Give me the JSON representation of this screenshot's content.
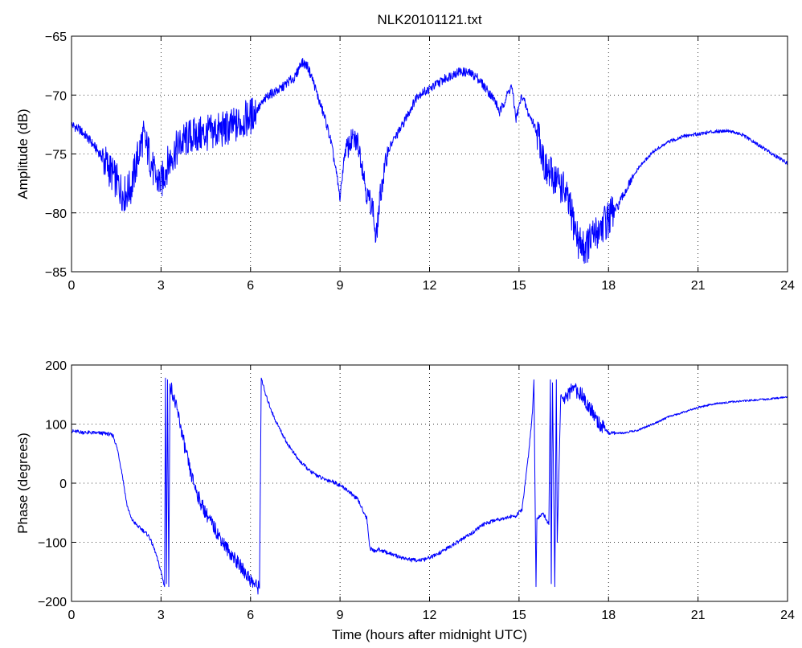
{
  "chart_data": [
    {
      "type": "line",
      "title": "NLK20101121.txt",
      "xlabel": "",
      "ylabel": "Amplitude (dB)",
      "xlim": [
        0,
        24
      ],
      "ylim": [
        -85,
        -65
      ],
      "xticks": [
        0,
        3,
        6,
        9,
        12,
        15,
        18,
        21,
        24
      ],
      "yticks": [
        -85,
        -80,
        -75,
        -70,
        -65
      ],
      "grid": true,
      "line_color": "#0000ff",
      "series": [
        {
          "name": "",
          "x": [
            0,
            0.3,
            0.6,
            0.9,
            1.2,
            1.5,
            1.75,
            2.0,
            2.2,
            2.4,
            2.6,
            2.8,
            3.0,
            3.2,
            3.4,
            3.7,
            4.0,
            4.5,
            5.0,
            5.5,
            6.0,
            6.3,
            6.6,
            7.0,
            7.3,
            7.5,
            7.7,
            7.9,
            8.1,
            8.3,
            8.5,
            8.7,
            8.9,
            9.0,
            9.15,
            9.4,
            9.6,
            9.75,
            9.9,
            10.1,
            10.2,
            10.35,
            10.6,
            10.8,
            11.0,
            11.3,
            11.6,
            12.0,
            12.4,
            12.8,
            13.0,
            13.3,
            13.6,
            14.0,
            14.2,
            14.35,
            14.6,
            14.75,
            14.9,
            15.1,
            15.3,
            15.5,
            15.7,
            15.9,
            16.2,
            16.5,
            16.8,
            17.0,
            17.2,
            17.5,
            17.8,
            18.0,
            18.3,
            18.6,
            19.0,
            19.5,
            20.0,
            20.5,
            21.0,
            21.5,
            22.0,
            22.5,
            23.0,
            23.5,
            24.0
          ],
          "y": [
            -72.5,
            -73.0,
            -73.8,
            -74.8,
            -76.0,
            -77.3,
            -78.5,
            -77.8,
            -75.5,
            -73.5,
            -75.0,
            -77.0,
            -77.5,
            -76.0,
            -75.0,
            -74.0,
            -73.5,
            -73.3,
            -73.0,
            -72.6,
            -71.8,
            -71.0,
            -70.0,
            -69.5,
            -68.8,
            -68.5,
            -67.2,
            -67.5,
            -68.8,
            -70.5,
            -72.0,
            -74.0,
            -77.0,
            -78.8,
            -75.0,
            -73.8,
            -74.0,
            -76.0,
            -78.5,
            -79.5,
            -82.5,
            -78.5,
            -74.8,
            -73.8,
            -73.0,
            -71.5,
            -70.0,
            -69.5,
            -68.8,
            -68.2,
            -68.0,
            -68.1,
            -68.5,
            -69.8,
            -70.5,
            -71.5,
            -70.0,
            -69.2,
            -72.0,
            -70.0,
            -71.5,
            -72.5,
            -73.8,
            -76.5,
            -77.0,
            -78.0,
            -80.5,
            -82.5,
            -83.0,
            -82.0,
            -81.0,
            -80.5,
            -79.5,
            -78.0,
            -76.2,
            -74.8,
            -74.0,
            -73.5,
            -73.3,
            -73.1,
            -73.0,
            -73.4,
            -74.2,
            -75.0,
            -75.8
          ]
        }
      ]
    },
    {
      "type": "line",
      "title": "",
      "xlabel": "Time (hours after midnight UTC)",
      "ylabel": "Phase (degrees)",
      "xlim": [
        0,
        24
      ],
      "ylim": [
        -200,
        200
      ],
      "xticks": [
        0,
        3,
        6,
        9,
        12,
        15,
        18,
        21,
        24
      ],
      "yticks": [
        -200,
        -100,
        0,
        100,
        200
      ],
      "grid": true,
      "line_color": "#0000ff",
      "series": [
        {
          "name": "",
          "x": [
            0,
            0.4,
            0.8,
            1.2,
            1.4,
            1.55,
            1.7,
            1.85,
            2.0,
            2.2,
            2.4,
            2.6,
            2.8,
            3.0,
            3.12,
            3.15,
            3.18,
            3.22,
            3.26,
            3.3,
            3.4,
            3.6,
            3.8,
            4.0,
            4.3,
            4.6,
            4.9,
            5.2,
            5.5,
            5.8,
            6.1,
            6.3,
            6.36,
            6.38,
            6.5,
            6.8,
            7.2,
            7.6,
            8.0,
            8.4,
            8.8,
            9.2,
            9.6,
            9.9,
            10.0,
            10.15,
            10.3,
            10.6,
            11.0,
            11.4,
            11.8,
            12.2,
            12.6,
            13.0,
            13.4,
            13.8,
            14.2,
            14.6,
            14.9,
            15.1,
            15.3,
            15.45,
            15.5,
            15.53,
            15.57,
            15.6,
            15.8,
            16.0,
            16.05,
            16.08,
            16.12,
            16.2,
            16.25,
            16.28,
            16.4,
            16.5,
            16.8,
            17.1,
            17.4,
            17.7,
            18.0,
            18.5,
            19.0,
            19.5,
            20.0,
            20.5,
            21.0,
            21.5,
            22.0,
            22.5,
            23.0,
            23.5,
            24.0
          ],
          "y": [
            88,
            86,
            85,
            84,
            80,
            55,
            15,
            -35,
            -60,
            -72,
            -80,
            -90,
            -115,
            -150,
            -175,
            178,
            -170,
            175,
            -175,
            170,
            150,
            110,
            60,
            15,
            -30,
            -60,
            -85,
            -110,
            -130,
            -150,
            -170,
            -178,
            178,
            175,
            150,
            110,
            70,
            40,
            20,
            8,
            2,
            -10,
            -28,
            -60,
            -110,
            -115,
            -112,
            -118,
            -125,
            -130,
            -130,
            -122,
            -110,
            -98,
            -85,
            -70,
            -62,
            -58,
            -55,
            -45,
            40,
            120,
            175,
            10,
            -175,
            -60,
            -50,
            -70,
            175,
            -170,
            170,
            -175,
            175,
            -100,
            150,
            140,
            160,
            150,
            125,
            100,
            85,
            85,
            90,
            100,
            112,
            120,
            128,
            134,
            137,
            139,
            141,
            143,
            146
          ]
        }
      ]
    }
  ]
}
